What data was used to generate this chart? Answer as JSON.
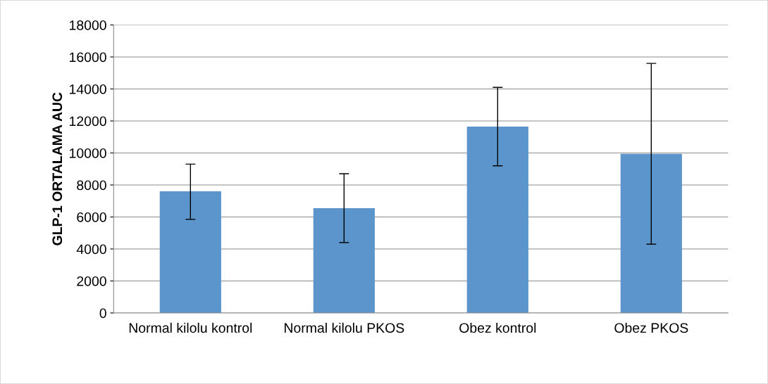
{
  "chart_data": {
    "type": "bar",
    "ylabel": "GLP-1 ORTALAMA AUC",
    "categories": [
      "Normal kilolu kontrol",
      "Normal kilolu PKOS",
      "Obez kontrol",
      "Obez PKOS"
    ],
    "values": [
      7600,
      6550,
      11650,
      9950
    ],
    "errors": [
      [
        5850,
        9300
      ],
      [
        4400,
        8700
      ],
      [
        9200,
        14100
      ],
      [
        4300,
        15600
      ]
    ],
    "color": "#5b95cb",
    "ylim": [
      0,
      18000
    ],
    "yticks": [
      0,
      2000,
      4000,
      6000,
      8000,
      10000,
      12000,
      14000,
      16000,
      18000
    ],
    "grid": "y"
  }
}
